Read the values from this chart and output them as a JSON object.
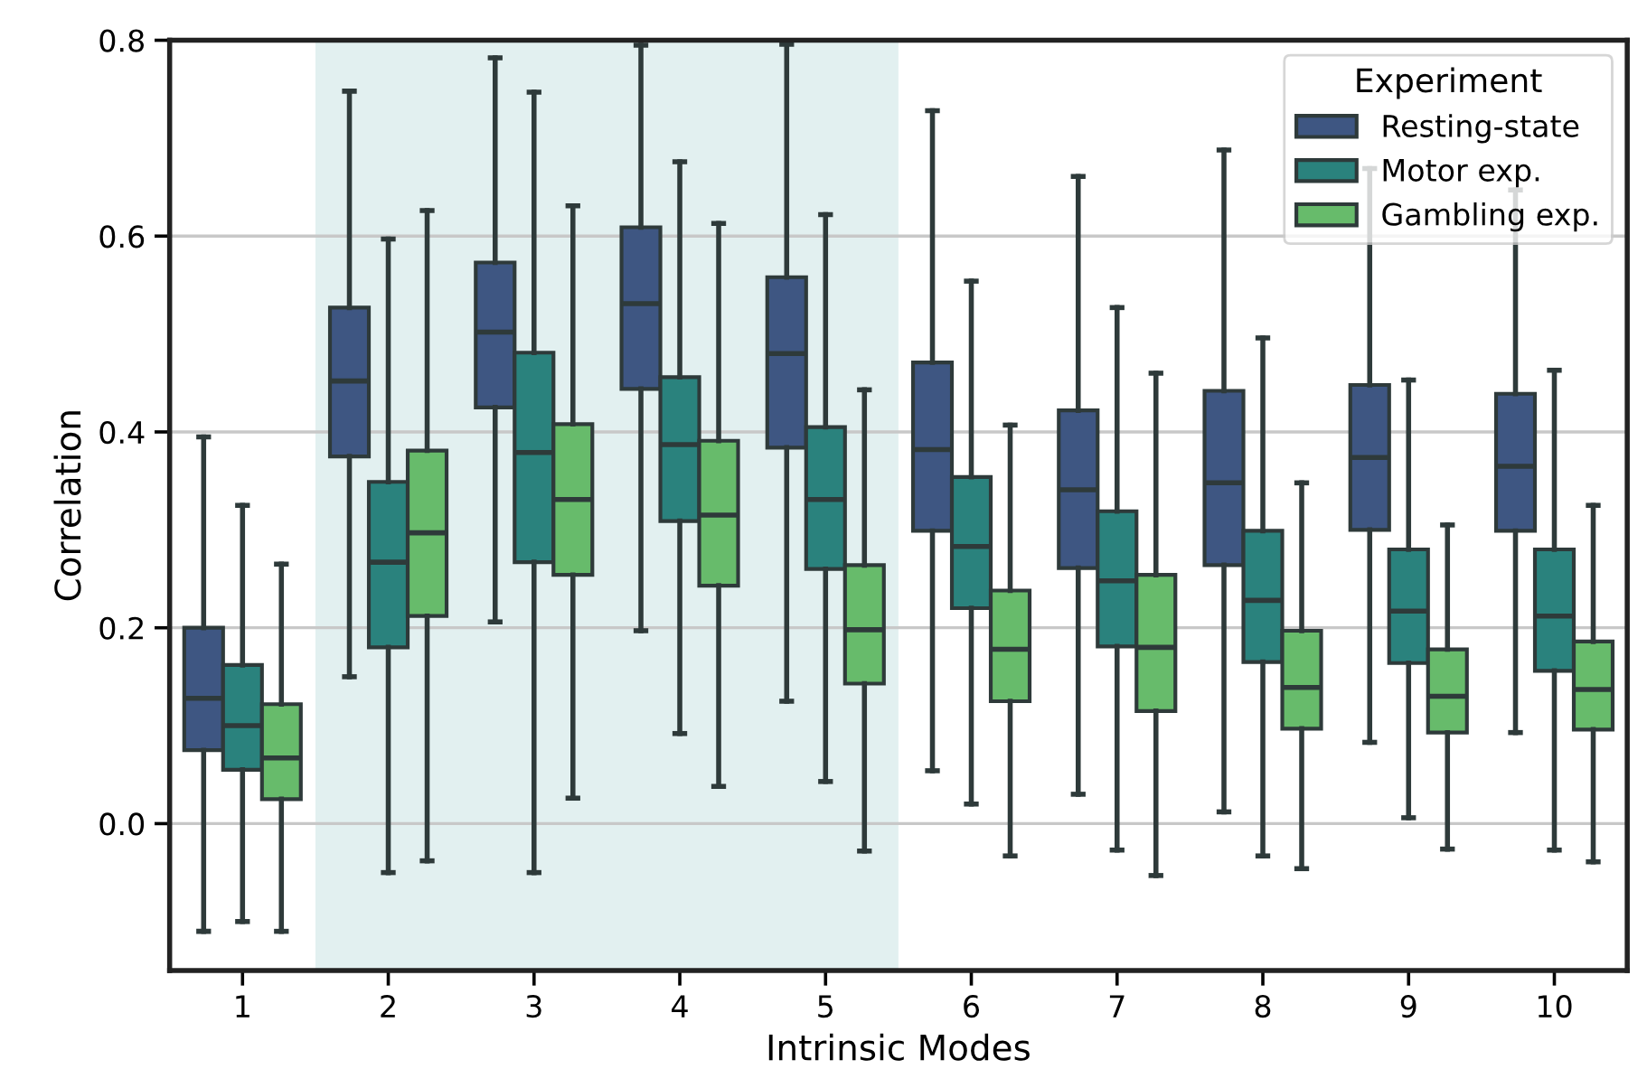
{
  "chart_data": {
    "type": "box",
    "xlabel": "Intrinsic Modes",
    "ylabel": "Correlation",
    "legend_title": "Experiment",
    "categories": [
      "1",
      "2",
      "3",
      "4",
      "5",
      "6",
      "7",
      "8",
      "9",
      "10"
    ],
    "ylim": [
      -0.15,
      0.8
    ],
    "yticks": [
      {
        "value": 0.0,
        "label": "0.0"
      },
      {
        "value": 0.2,
        "label": "0.2"
      },
      {
        "value": 0.4,
        "label": "0.4"
      },
      {
        "value": 0.6,
        "label": "0.6"
      },
      {
        "value": 0.8,
        "label": "0.8"
      }
    ],
    "grid": "y",
    "legend": "top right",
    "bands": [
      {
        "axis": "x",
        "from": "2",
        "to": "5",
        "color": "#e2f0f0"
      }
    ],
    "series": [
      {
        "name": "Resting-state",
        "color": "#3e5682",
        "boxes": [
          {
            "low": -0.11,
            "q1": 0.075,
            "median": 0.128,
            "q3": 0.2,
            "high": 0.395
          },
          {
            "low": 0.15,
            "q1": 0.375,
            "median": 0.452,
            "q3": 0.527,
            "high": 0.748
          },
          {
            "low": 0.206,
            "q1": 0.425,
            "median": 0.502,
            "q3": 0.573,
            "high": 0.782
          },
          {
            "low": 0.197,
            "q1": 0.444,
            "median": 0.531,
            "q3": 0.609,
            "high": 0.795
          },
          {
            "low": 0.125,
            "q1": 0.384,
            "median": 0.48,
            "q3": 0.558,
            "high": 0.796
          },
          {
            "low": 0.054,
            "q1": 0.299,
            "median": 0.382,
            "q3": 0.471,
            "high": 0.728
          },
          {
            "low": 0.03,
            "q1": 0.261,
            "median": 0.341,
            "q3": 0.422,
            "high": 0.661
          },
          {
            "low": 0.012,
            "q1": 0.264,
            "median": 0.348,
            "q3": 0.442,
            "high": 0.688
          },
          {
            "low": 0.083,
            "q1": 0.3,
            "median": 0.374,
            "q3": 0.448,
            "high": 0.669
          },
          {
            "low": 0.093,
            "q1": 0.299,
            "median": 0.365,
            "q3": 0.439,
            "high": 0.647
          }
        ]
      },
      {
        "name": "Motor exp.",
        "color": "#2a827d",
        "boxes": [
          {
            "low": -0.1,
            "q1": 0.055,
            "median": 0.1,
            "q3": 0.162,
            "high": 0.325
          },
          {
            "low": -0.05,
            "q1": 0.18,
            "median": 0.267,
            "q3": 0.349,
            "high": 0.597
          },
          {
            "low": -0.05,
            "q1": 0.267,
            "median": 0.379,
            "q3": 0.481,
            "high": 0.747
          },
          {
            "low": 0.092,
            "q1": 0.309,
            "median": 0.387,
            "q3": 0.456,
            "high": 0.676
          },
          {
            "low": 0.043,
            "q1": 0.26,
            "median": 0.331,
            "q3": 0.405,
            "high": 0.622
          },
          {
            "low": 0.02,
            "q1": 0.22,
            "median": 0.283,
            "q3": 0.354,
            "high": 0.554
          },
          {
            "low": -0.027,
            "q1": 0.181,
            "median": 0.248,
            "q3": 0.319,
            "high": 0.527
          },
          {
            "low": -0.033,
            "q1": 0.165,
            "median": 0.228,
            "q3": 0.299,
            "high": 0.496
          },
          {
            "low": 0.006,
            "q1": 0.164,
            "median": 0.217,
            "q3": 0.28,
            "high": 0.453
          },
          {
            "low": -0.027,
            "q1": 0.156,
            "median": 0.212,
            "q3": 0.28,
            "high": 0.463
          }
        ]
      },
      {
        "name": "Gambling exp.",
        "color": "#67bb6b",
        "boxes": [
          {
            "low": -0.11,
            "q1": 0.025,
            "median": 0.067,
            "q3": 0.122,
            "high": 0.265
          },
          {
            "low": -0.038,
            "q1": 0.212,
            "median": 0.297,
            "q3": 0.381,
            "high": 0.626
          },
          {
            "low": 0.026,
            "q1": 0.254,
            "median": 0.331,
            "q3": 0.408,
            "high": 0.631
          },
          {
            "low": 0.038,
            "q1": 0.243,
            "median": 0.315,
            "q3": 0.391,
            "high": 0.613
          },
          {
            "low": -0.028,
            "q1": 0.143,
            "median": 0.198,
            "q3": 0.264,
            "high": 0.443
          },
          {
            "low": -0.033,
            "q1": 0.125,
            "median": 0.178,
            "q3": 0.238,
            "high": 0.407
          },
          {
            "low": -0.053,
            "q1": 0.115,
            "median": 0.18,
            "q3": 0.254,
            "high": 0.46
          },
          {
            "low": -0.046,
            "q1": 0.097,
            "median": 0.139,
            "q3": 0.197,
            "high": 0.348
          },
          {
            "low": -0.026,
            "q1": 0.093,
            "median": 0.13,
            "q3": 0.178,
            "high": 0.305
          },
          {
            "low": -0.039,
            "q1": 0.096,
            "median": 0.137,
            "q3": 0.186,
            "high": 0.325
          }
        ]
      }
    ]
  }
}
